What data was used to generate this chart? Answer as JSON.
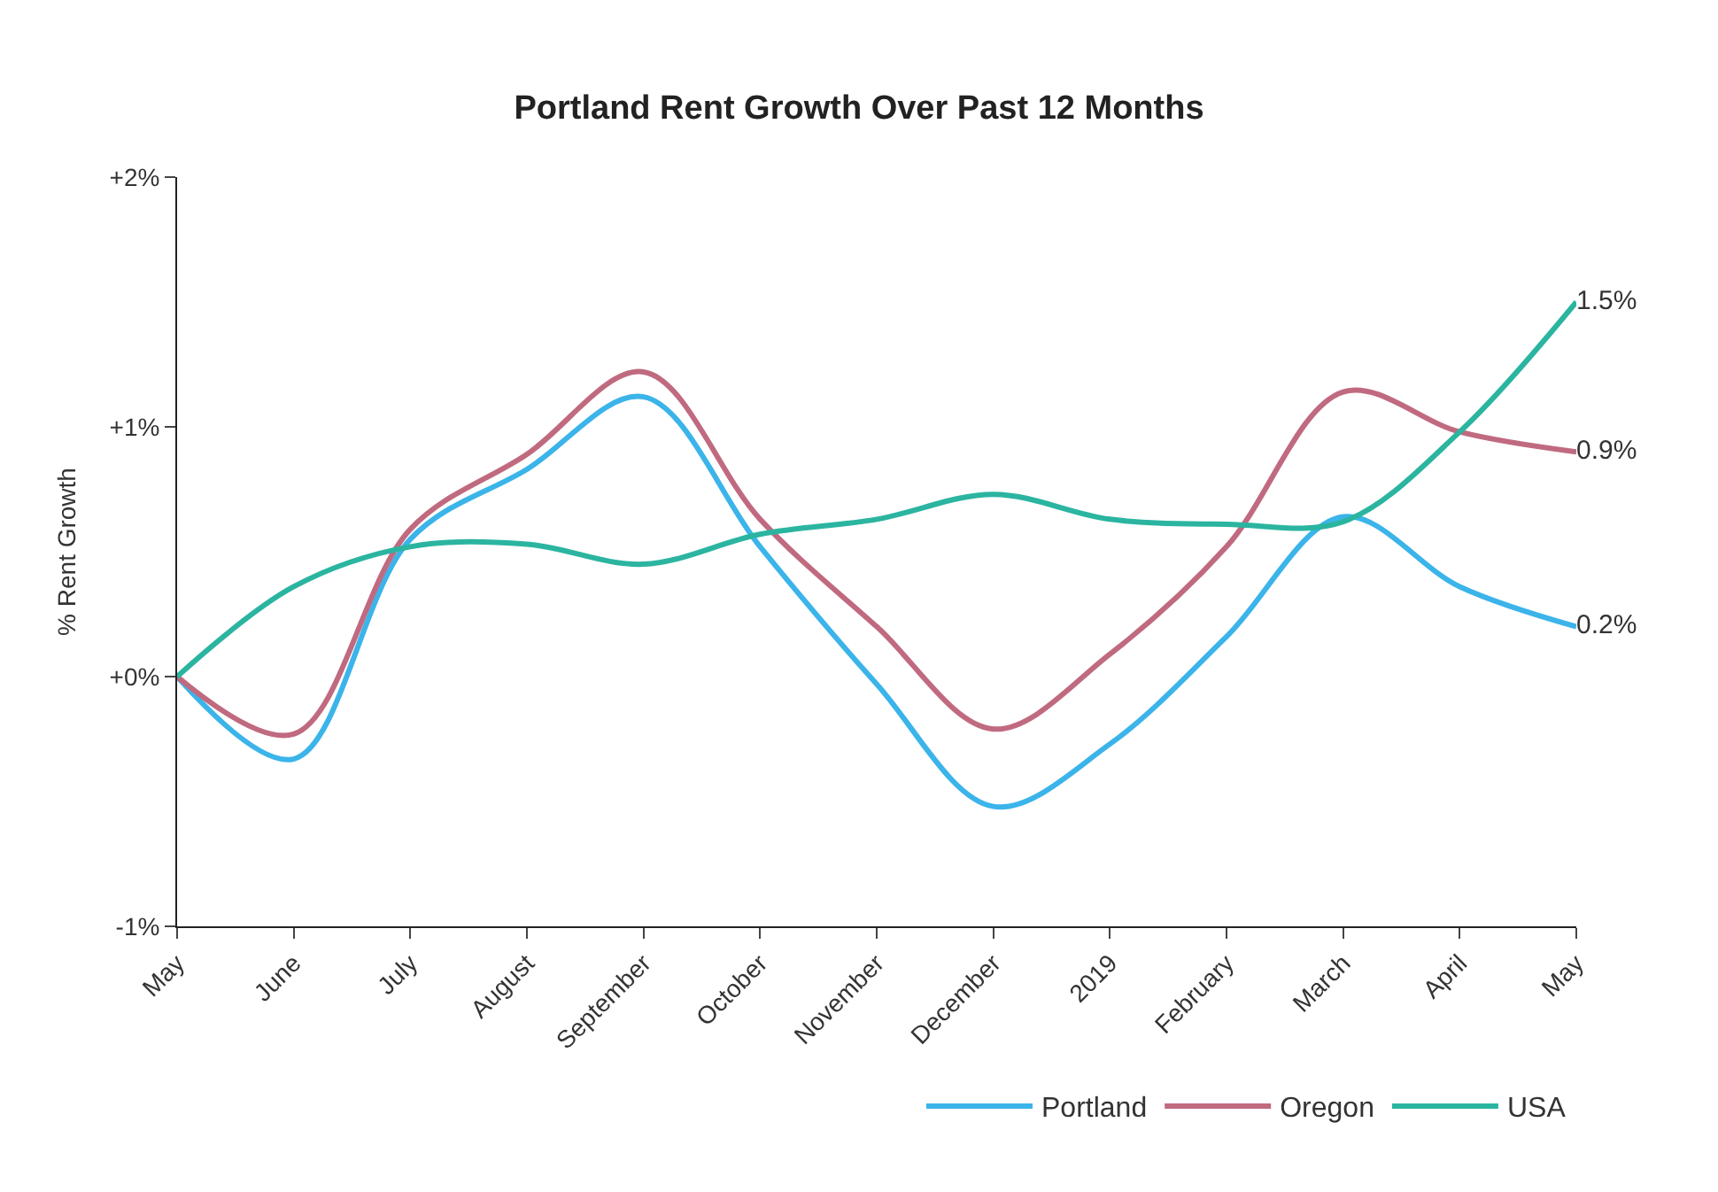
{
  "chart_data": {
    "type": "line",
    "title": "Portland Rent Growth Over Past 12 Months",
    "ylabel": "% Rent Growth",
    "categories": [
      "May",
      "June",
      "July",
      "August",
      "September",
      "October",
      "November",
      "December",
      "2019",
      "February",
      "March",
      "April",
      "May"
    ],
    "ylim": [
      -1,
      2
    ],
    "yticks": [
      {
        "value": -1,
        "label": "-1%"
      },
      {
        "value": 0,
        "label": "+0%"
      },
      {
        "value": 1,
        "label": "+1%"
      },
      {
        "value": 2,
        "label": "+2%"
      }
    ],
    "legend": "bottom right",
    "marker": "none",
    "line_style": "solid",
    "series": [
      {
        "name": "Portland",
        "color": "#3bb4ea",
        "values": [
          0,
          -0.33,
          0.55,
          0.83,
          1.12,
          0.52,
          -0.03,
          -0.52,
          -0.27,
          0.16,
          0.64,
          0.36,
          0.2
        ],
        "value_labels": [
          null,
          null,
          null,
          null,
          null,
          null,
          null,
          null,
          null,
          null,
          null,
          null,
          "0.2%"
        ]
      },
      {
        "name": "Oregon",
        "color": "#c06a80",
        "values": [
          0,
          -0.23,
          0.59,
          0.89,
          1.22,
          0.63,
          0.2,
          -0.21,
          0.09,
          0.52,
          1.14,
          0.98,
          0.9
        ],
        "value_labels": [
          null,
          null,
          null,
          null,
          null,
          null,
          null,
          null,
          null,
          null,
          null,
          null,
          "0.9%"
        ]
      },
      {
        "name": "USA",
        "color": "#2bb5a0",
        "values": [
          0,
          0.36,
          0.52,
          0.53,
          0.45,
          0.57,
          0.63,
          0.73,
          0.63,
          0.61,
          0.62,
          0.98,
          1.5
        ],
        "value_labels": [
          null,
          null,
          null,
          null,
          null,
          null,
          null,
          null,
          null,
          null,
          null,
          null,
          "1.5%"
        ]
      }
    ]
  }
}
